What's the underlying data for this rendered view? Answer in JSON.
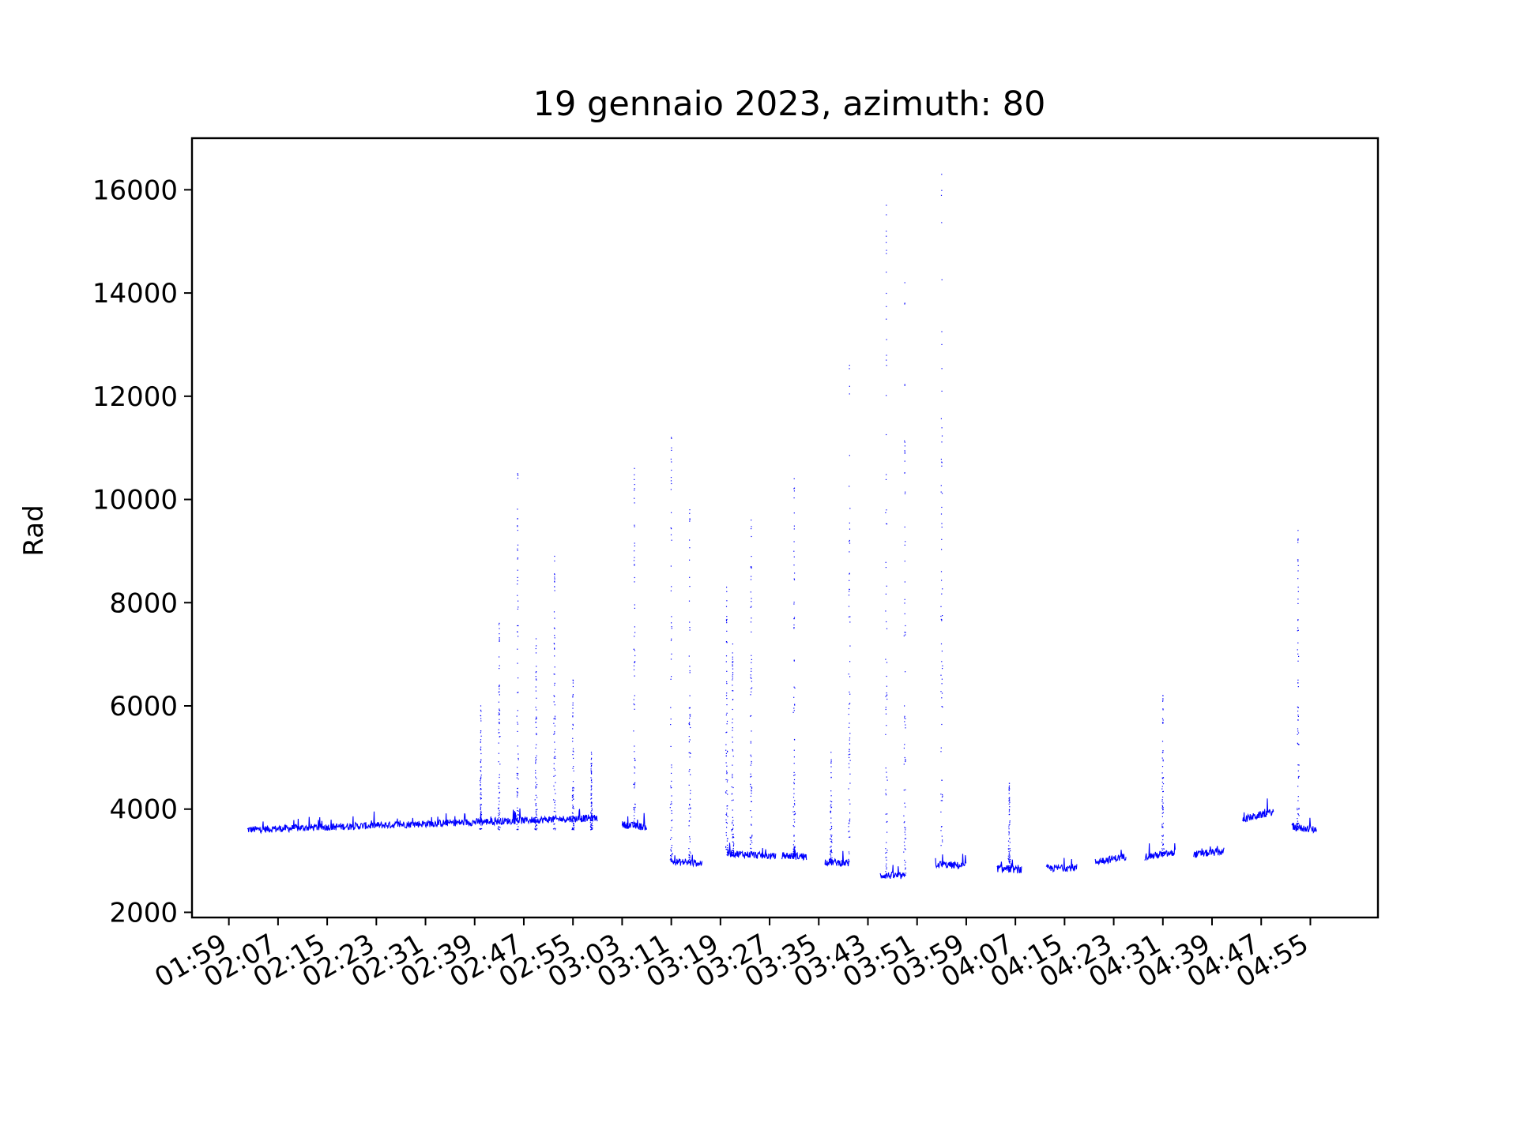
{
  "chart_data": {
    "type": "scatter",
    "title": "19 gennaio 2023, azimuth: 80",
    "xlabel": "",
    "ylabel": "Rad",
    "ylim": [
      1900,
      17000
    ],
    "xlim": [
      "01:53",
      "05:06"
    ],
    "yticks": [
      2000,
      4000,
      6000,
      8000,
      10000,
      12000,
      14000,
      16000
    ],
    "ytick_labels": [
      "2000",
      "4000",
      "6000",
      "8000",
      "10000",
      "12000",
      "14000",
      "16000"
    ],
    "xticks": [
      "01:59",
      "02:07",
      "02:15",
      "02:23",
      "02:31",
      "02:39",
      "02:47",
      "02:55",
      "03:03",
      "03:11",
      "03:19",
      "03:27",
      "03:35",
      "03:43",
      "03:51",
      "03:59",
      "04:07",
      "04:15",
      "04:23",
      "04:31",
      "04:39",
      "04:47",
      "04:55"
    ],
    "grid": false,
    "legend": "none",
    "series_color": "#0000ff",
    "segments": [
      {
        "start": "02:02",
        "end": "02:59",
        "baseline_start": 3600,
        "baseline_end": 3830
      },
      {
        "start": "03:03",
        "end": "03:07",
        "baseline_start": 3700,
        "baseline_end": 3650
      },
      {
        "start": "03:11",
        "end": "03:16",
        "baseline_start": 2980,
        "baseline_end": 2950
      },
      {
        "start": "03:20",
        "end": "03:28",
        "baseline_start": 3150,
        "baseline_end": 3080
      },
      {
        "start": "03:29",
        "end": "03:33",
        "baseline_start": 3100,
        "baseline_end": 3080
      },
      {
        "start": "03:36",
        "end": "03:40",
        "baseline_start": 2980,
        "baseline_end": 2950
      },
      {
        "start": "03:45",
        "end": "03:49",
        "baseline_start": 2720,
        "baseline_end": 2700
      },
      {
        "start": "03:54",
        "end": "03:59",
        "baseline_start": 2930,
        "baseline_end": 2900
      },
      {
        "start": "04:04",
        "end": "04:08",
        "baseline_start": 2850,
        "baseline_end": 2820
      },
      {
        "start": "04:12",
        "end": "04:17",
        "baseline_start": 2850,
        "baseline_end": 2870
      },
      {
        "start": "04:20",
        "end": "04:25",
        "baseline_start": 2980,
        "baseline_end": 3080
      },
      {
        "start": "04:28",
        "end": "04:33",
        "baseline_start": 3080,
        "baseline_end": 3150
      },
      {
        "start": "04:36",
        "end": "04:41",
        "baseline_start": 3120,
        "baseline_end": 3180
      },
      {
        "start": "04:44",
        "end": "04:49",
        "baseline_start": 3800,
        "baseline_end": 3950
      },
      {
        "start": "04:52",
        "end": "04:56",
        "baseline_start": 3650,
        "baseline_end": 3600
      }
    ],
    "spikes": [
      {
        "time": "02:40",
        "peak": 6000
      },
      {
        "time": "02:43",
        "peak": 7600
      },
      {
        "time": "02:46",
        "peak": 10500
      },
      {
        "time": "02:49",
        "peak": 7300
      },
      {
        "time": "02:52",
        "peak": 8900
      },
      {
        "time": "02:55",
        "peak": 6500
      },
      {
        "time": "02:58",
        "peak": 5100
      },
      {
        "time": "03:05",
        "peak": 10600
      },
      {
        "time": "03:11",
        "peak": 11200
      },
      {
        "time": "03:14",
        "peak": 9800
      },
      {
        "time": "03:20",
        "peak": 8300
      },
      {
        "time": "03:21",
        "peak": 7200
      },
      {
        "time": "03:24",
        "peak": 9600
      },
      {
        "time": "03:31",
        "peak": 10400
      },
      {
        "time": "03:37",
        "peak": 5100
      },
      {
        "time": "03:40",
        "peak": 12600
      },
      {
        "time": "03:46",
        "peak": 15700
      },
      {
        "time": "03:49",
        "peak": 14200
      },
      {
        "time": "03:55",
        "peak": 16300
      },
      {
        "time": "04:06",
        "peak": 4500
      },
      {
        "time": "04:31",
        "peak": 6200
      },
      {
        "time": "04:53",
        "peak": 9400
      }
    ]
  }
}
